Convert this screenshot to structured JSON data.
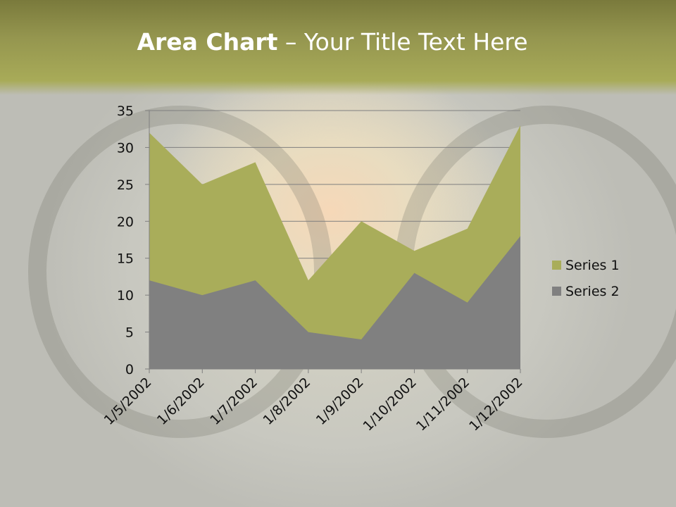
{
  "slide": {
    "title_bold": "Area Chart",
    "title_rest": " – Your Title Text Here"
  },
  "chart_data": {
    "type": "area",
    "title": "",
    "categories": [
      "1/5/2002",
      "1/6/2002",
      "1/7/2002",
      "1/8/2002",
      "1/9/2002",
      "1/10/2002",
      "1/11/2002",
      "1/12/2002"
    ],
    "series": [
      {
        "name": "Series 1",
        "values": [
          32,
          25,
          28,
          12,
          20,
          16,
          19,
          33
        ],
        "color": "#a9ad5a"
      },
      {
        "name": "Series 2",
        "values": [
          12,
          10,
          12,
          5,
          4,
          13,
          9,
          18
        ],
        "color": "#808080"
      }
    ],
    "ylim": [
      0,
      35
    ],
    "yticks": [
      0,
      5,
      10,
      15,
      20,
      25,
      30,
      35
    ],
    "grid": true,
    "legend_position": "right"
  }
}
